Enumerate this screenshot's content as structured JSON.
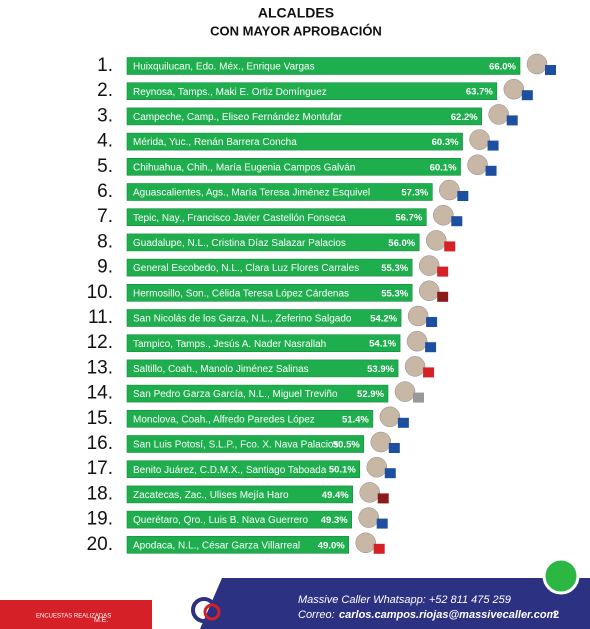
{
  "chart_data": {
    "type": "bar",
    "orientation": "horizontal",
    "title": "ALCALDES",
    "subtitle": "CON MAYOR APROBACIÓN",
    "ranks": [
      "1.",
      "2.",
      "3.",
      "4.",
      "5.",
      "6.",
      "7.",
      "8.",
      "9.",
      "10.",
      "11.",
      "12.",
      "13.",
      "14.",
      "15.",
      "16.",
      "17.",
      "18.",
      "19.",
      "20."
    ],
    "categories": [
      "Huixquilucan, Edo. Méx., Enrique Vargas",
      "Reynosa, Tamps., Maki E. Ortiz Domínguez",
      "Campeche, Camp., Eliseo Fernández Montufar",
      "Mérida, Yuc., Renán Barrera Concha",
      "Chihuahua, Chih., María Eugenia Campos Galván",
      "Aguascalientes, Ags., María Teresa Jiménez Esquivel",
      "Tepic, Nay., Francisco Javier Castellón Fonseca",
      "Guadalupe, N.L., Cristina Díaz Salazar Palacios",
      "General Escobedo, N.L., Clara Luz Flores Carrales",
      "Hermosillo, Son., Célida Teresa López Cárdenas",
      "San Nicolás de los Garza, N.L., Zeferino Salgado",
      "Tampico, Tamps., Jesús A. Nader Nasrallah",
      "Saltillo, Coah., Manolo Jiménez Salinas",
      "San Pedro Garza García, N.L., Miguel Treviño",
      "Monclova, Coah., Alfredo Paredes López",
      "San Luis Potosí, S.L.P., Fco. X. Nava Palacios",
      "Benito Juárez, C.D.M.X., Santiago Taboada",
      "Zacatecas, Zac., Ulises Mejía Haro",
      "Querétaro, Qro., Luis B. Nava Guerrero",
      "Apodaca, N.L., César Garza Villarreal"
    ],
    "values": [
      66.0,
      63.7,
      62.2,
      60.3,
      60.1,
      57.3,
      56.7,
      56.0,
      55.3,
      55.3,
      54.2,
      54.1,
      53.9,
      52.9,
      51.4,
      50.5,
      50.1,
      49.4,
      49.3,
      49.0
    ],
    "value_labels": [
      "66.0%",
      "63.7%",
      "62.2%",
      "60.3%",
      "60.1%",
      "57.3%",
      "56.7%",
      "56.0%",
      "55.3%",
      "55.3%",
      "54.2%",
      "54.1%",
      "53.9%",
      "52.9%",
      "51.4%",
      "50.5%",
      "50.1%",
      "49.4%",
      "49.3%",
      "49.0%"
    ],
    "color": "#1fae4e",
    "xlim": [
      27,
      66
    ]
  },
  "footer": {
    "whatsapp": "Massive Caller Whatsapp: +52  811 475 259",
    "email_label": "Correo:",
    "email": "carlos.campos.riojas@massivecaller.com",
    "page": "2",
    "badge_left": "ENCUESTAS REALIZADAS",
    "badge_right": "M.E."
  }
}
